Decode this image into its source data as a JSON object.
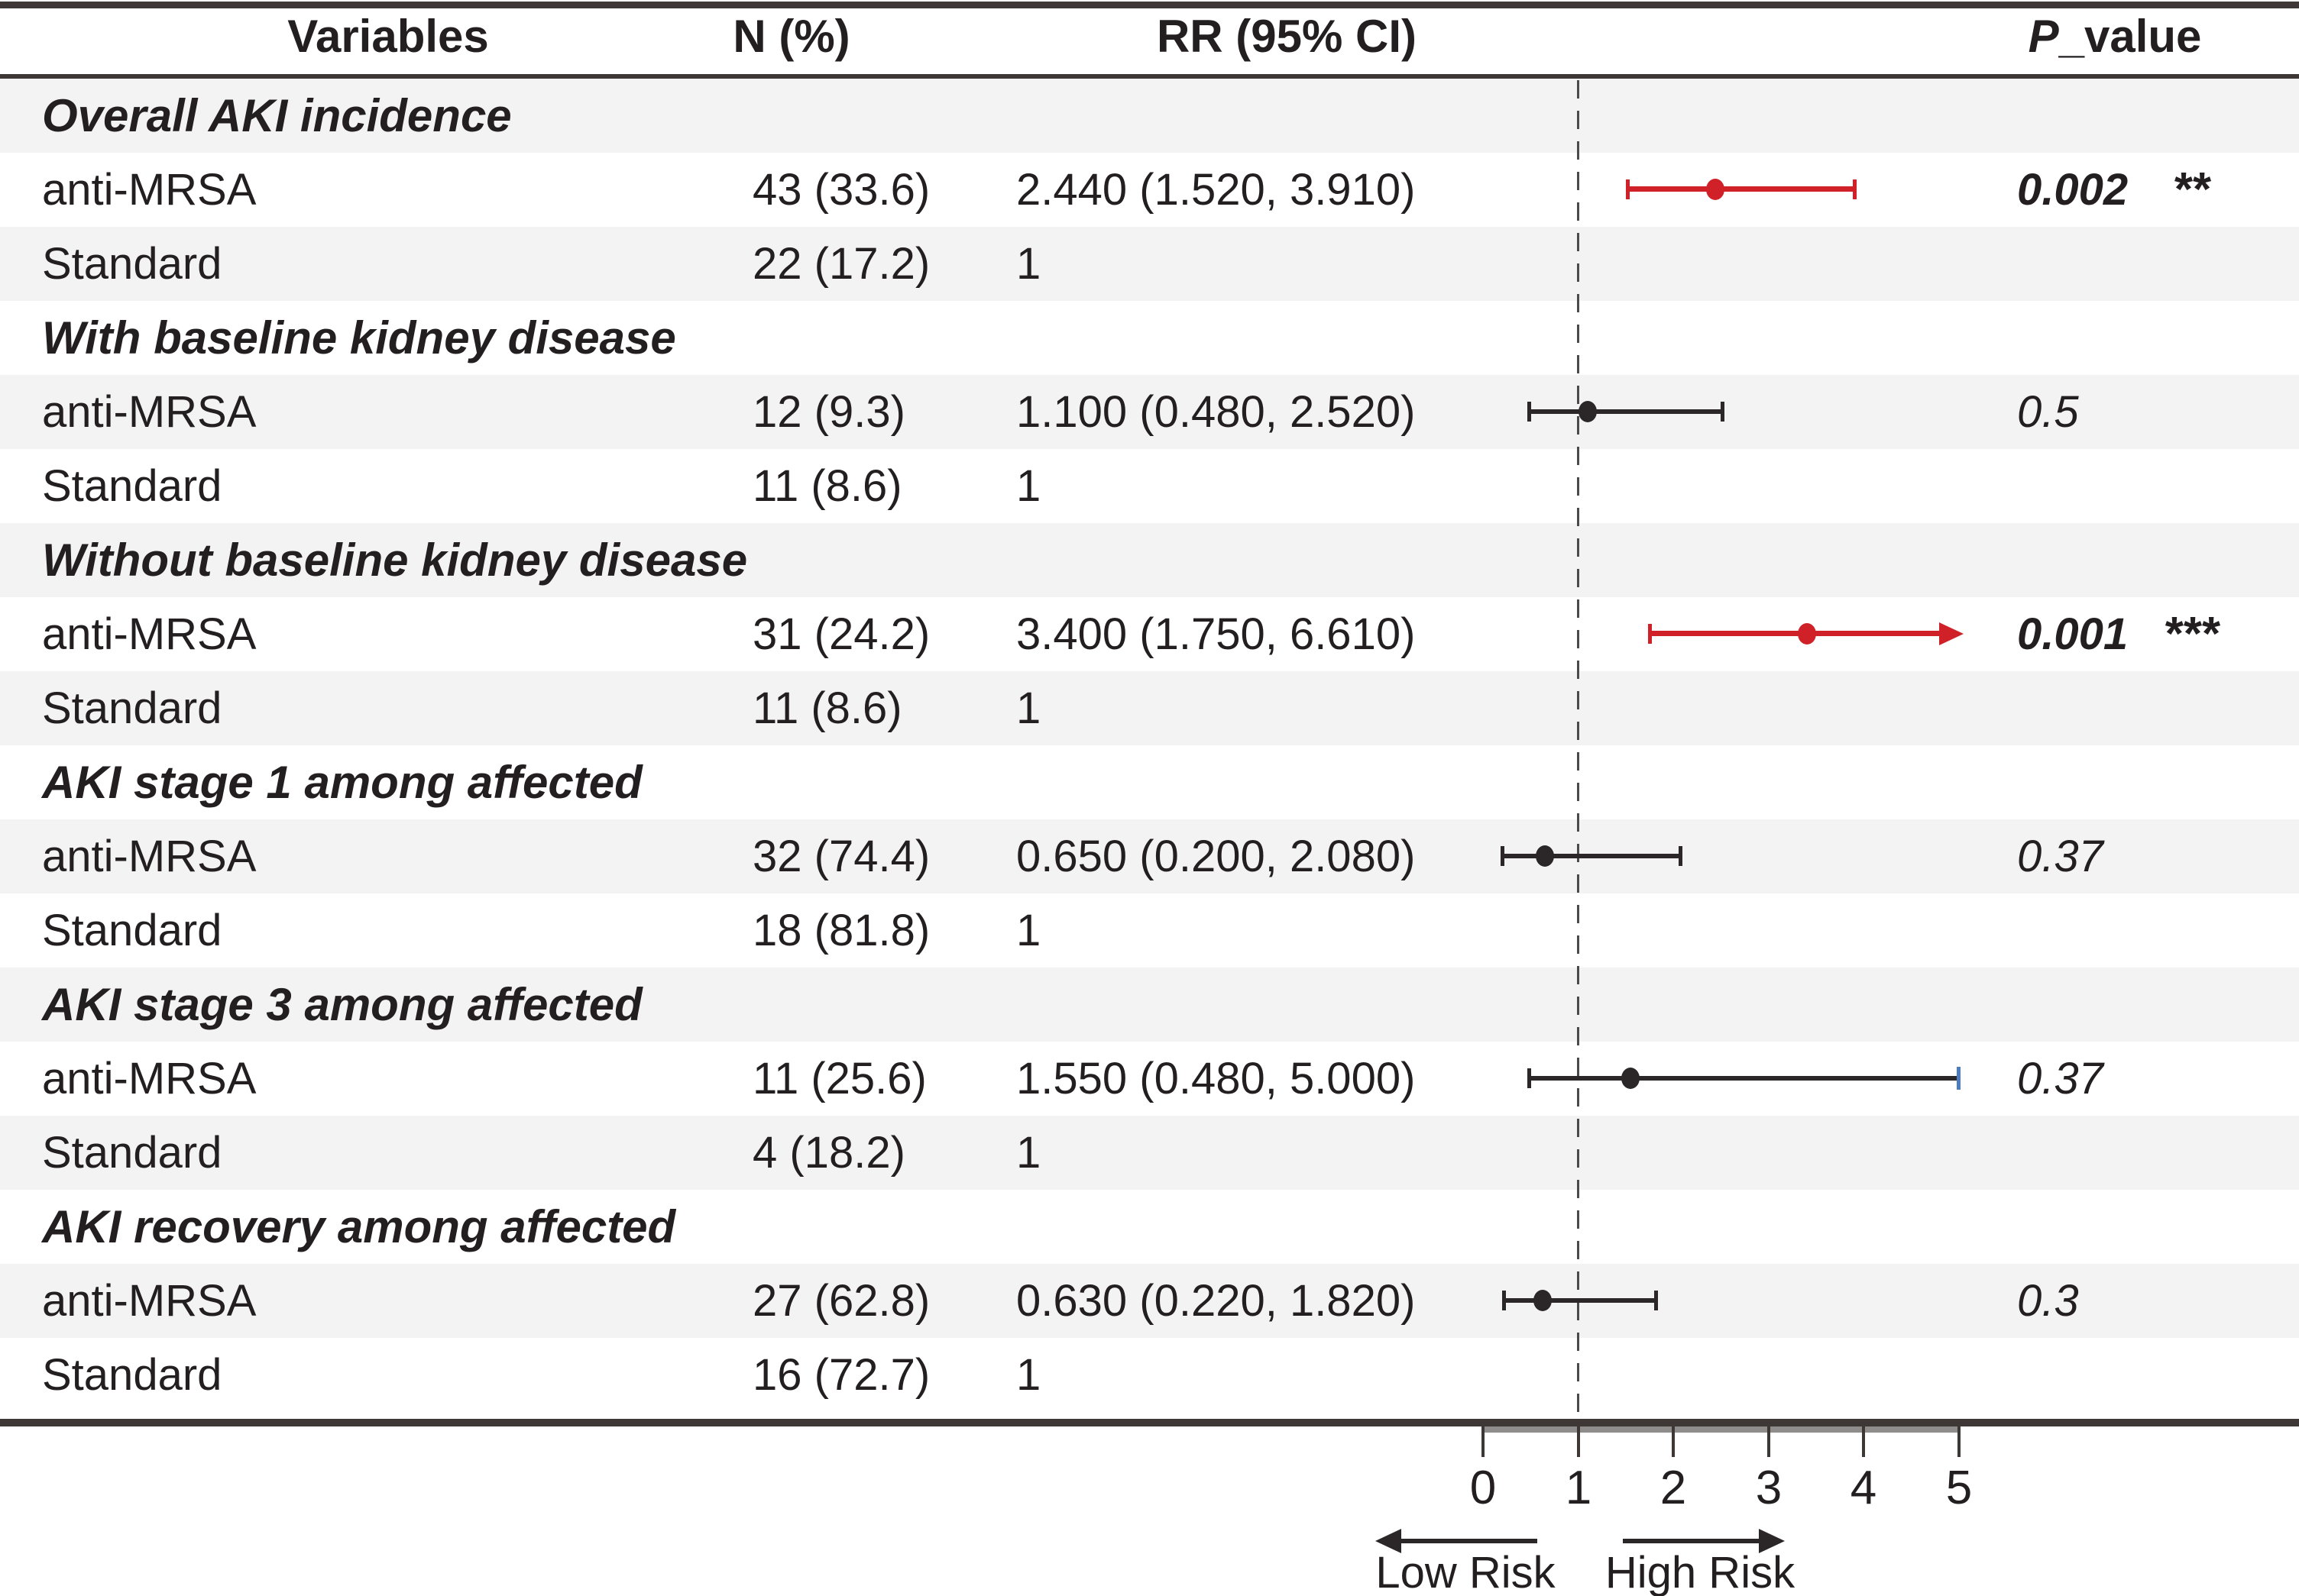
{
  "header": {
    "variables": "Variables",
    "n": "N (%)",
    "rr": "RR (95% CI)",
    "p_italic": "P",
    "p_rest": "_value"
  },
  "rows": [
    {
      "kind": "section",
      "label": "Overall AKI incidence"
    },
    {
      "kind": "data",
      "label": "anti-MRSA",
      "n": "43 (33.6)",
      "rr": "2.440 (1.520, 3.910)",
      "p": "0.002",
      "p_sig": true,
      "stars": "**",
      "plot": {
        "est": 2.44,
        "lo": 1.52,
        "hi": 3.91,
        "color": "red"
      }
    },
    {
      "kind": "data",
      "label": "Standard",
      "n": "22 (17.2)",
      "rr": "1"
    },
    {
      "kind": "section",
      "label": "With baseline kidney disease"
    },
    {
      "kind": "data",
      "label": "anti-MRSA",
      "n": "12 (9.3)",
      "rr": "1.100 (0.480, 2.520)",
      "p": "0.5",
      "plot": {
        "est": 1.1,
        "lo": 0.48,
        "hi": 2.52,
        "color": "black"
      }
    },
    {
      "kind": "data",
      "label": "Standard",
      "n": "11 (8.6)",
      "rr": "1"
    },
    {
      "kind": "section",
      "label": "Without baseline kidney disease"
    },
    {
      "kind": "data",
      "label": "anti-MRSA",
      "n": "31 (24.2)",
      "rr": "3.400 (1.750, 6.610)",
      "p": "0.001",
      "p_sig": true,
      "stars": "***",
      "plot": {
        "est": 3.4,
        "lo": 1.75,
        "hi": 6.61,
        "color": "red",
        "hi_arrow": true
      }
    },
    {
      "kind": "data",
      "label": "Standard",
      "n": "11 (8.6)",
      "rr": "1"
    },
    {
      "kind": "section",
      "label": "AKI stage 1 among affected"
    },
    {
      "kind": "data",
      "label": "anti-MRSA",
      "n": "32 (74.4)",
      "rr": "0.650 (0.200, 2.080)",
      "p": "0.37",
      "plot": {
        "est": 0.65,
        "lo": 0.2,
        "hi": 2.08,
        "color": "black"
      }
    },
    {
      "kind": "data",
      "label": "Standard",
      "n": "18 (81.8)",
      "rr": "1"
    },
    {
      "kind": "section",
      "label": "AKI stage 3 among affected"
    },
    {
      "kind": "data",
      "label": "anti-MRSA",
      "n": "11 (25.6)",
      "rr": "1.550 (0.480, 5.000)",
      "p": "0.37",
      "plot": {
        "est": 1.55,
        "lo": 0.48,
        "hi": 5.0,
        "color": "black",
        "hi_cap": "blue"
      }
    },
    {
      "kind": "data",
      "label": "Standard",
      "n": "4 (18.2)",
      "rr": "1"
    },
    {
      "kind": "section",
      "label": "AKI recovery among affected"
    },
    {
      "kind": "data",
      "label": "anti-MRSA",
      "n": "27 (62.8)",
      "rr": "0.630 (0.220, 1.820)",
      "p": "0.3",
      "plot": {
        "est": 0.63,
        "lo": 0.22,
        "hi": 1.82,
        "color": "black"
      }
    },
    {
      "kind": "data",
      "label": "Standard",
      "n": "16 (72.7)",
      "rr": "1"
    }
  ],
  "axis": {
    "ticks": [
      "0",
      "1",
      "2",
      "3",
      "4",
      "5"
    ],
    "low_label": "Low Risk",
    "high_label": "High Risk"
  },
  "colors": {
    "text": "#231f20",
    "stripe": "#f4f3f3",
    "rule": "#3d3835",
    "red": "#cf2127",
    "ci_black": "#2b2728",
    "blue_cap": "#4d7dbe",
    "axis_bar": "#8f8c8c",
    "dash": "#4a4a4a"
  },
  "chart_data": {
    "type": "scatter",
    "subtype": "forest_plot",
    "columns": [
      "Variables",
      "N (%)",
      "RR (95% CI)",
      "P_value"
    ],
    "x_axis": {
      "min": 0,
      "max": 5,
      "ticks": [
        0,
        1,
        2,
        3,
        4,
        5
      ],
      "reference_line": 1,
      "direction_labels": {
        "left": "Low Risk",
        "right": "High Risk"
      }
    },
    "legend": "none",
    "grid": false,
    "groups": [
      {
        "name": "Overall AKI incidence",
        "rows": [
          {
            "arm": "anti-MRSA",
            "n": 43,
            "pct": 33.6,
            "rr": 2.44,
            "ci_low": 1.52,
            "ci_high": 3.91,
            "p_value": "0.002",
            "significance": "**",
            "marker_color": "#cf2127"
          },
          {
            "arm": "Standard",
            "n": 22,
            "pct": 17.2,
            "rr": 1
          }
        ]
      },
      {
        "name": "With baseline kidney disease",
        "rows": [
          {
            "arm": "anti-MRSA",
            "n": 12,
            "pct": 9.3,
            "rr": 1.1,
            "ci_low": 0.48,
            "ci_high": 2.52,
            "p_value": "0.5",
            "marker_color": "#2b2728"
          },
          {
            "arm": "Standard",
            "n": 11,
            "pct": 8.6,
            "rr": 1
          }
        ]
      },
      {
        "name": "Without baseline kidney disease",
        "rows": [
          {
            "arm": "anti-MRSA",
            "n": 31,
            "pct": 24.2,
            "rr": 3.4,
            "ci_low": 1.75,
            "ci_high": 6.61,
            "ci_high_clipped_at": 5,
            "p_value": "0.001",
            "significance": "***",
            "marker_color": "#cf2127"
          },
          {
            "arm": "Standard",
            "n": 11,
            "pct": 8.6,
            "rr": 1
          }
        ]
      },
      {
        "name": "AKI stage 1 among affected",
        "rows": [
          {
            "arm": "anti-MRSA",
            "n": 32,
            "pct": 74.4,
            "rr": 0.65,
            "ci_low": 0.2,
            "ci_high": 2.08,
            "p_value": "0.37",
            "marker_color": "#2b2728"
          },
          {
            "arm": "Standard",
            "n": 18,
            "pct": 81.8,
            "rr": 1
          }
        ]
      },
      {
        "name": "AKI stage 3 among affected",
        "rows": [
          {
            "arm": "anti-MRSA",
            "n": 11,
            "pct": 25.6,
            "rr": 1.55,
            "ci_low": 0.48,
            "ci_high": 5.0,
            "p_value": "0.37",
            "marker_color": "#2b2728"
          },
          {
            "arm": "Standard",
            "n": 4,
            "pct": 18.2,
            "rr": 1
          }
        ]
      },
      {
        "name": "AKI recovery among affected",
        "rows": [
          {
            "arm": "anti-MRSA",
            "n": 27,
            "pct": 62.8,
            "rr": 0.63,
            "ci_low": 0.22,
            "ci_high": 1.82,
            "p_value": "0.3",
            "marker_color": "#2b2728"
          },
          {
            "arm": "Standard",
            "n": 16,
            "pct": 72.7,
            "rr": 1
          }
        ]
      }
    ]
  }
}
